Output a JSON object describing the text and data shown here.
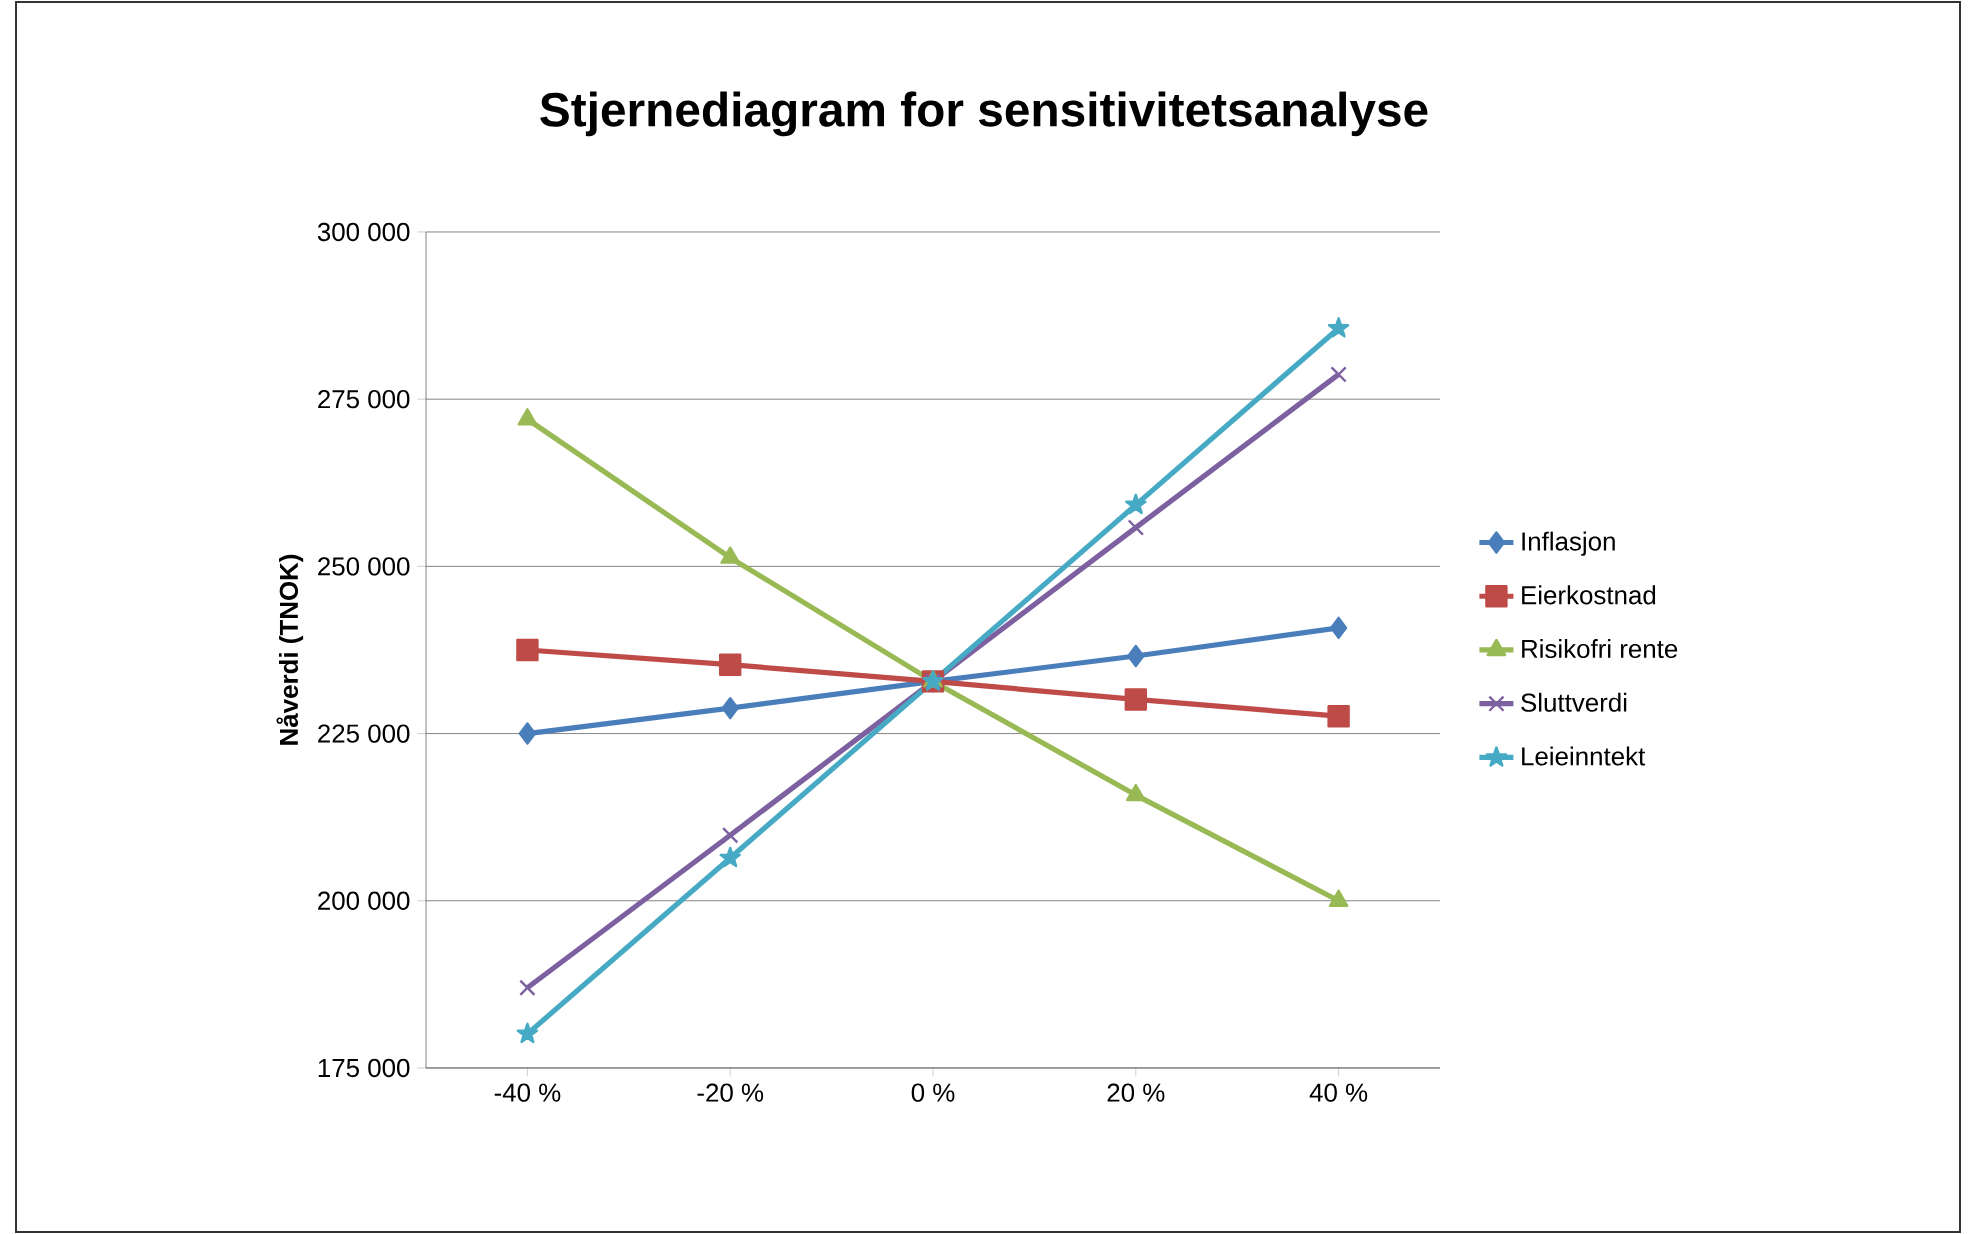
{
  "chart_data": {
    "type": "line",
    "title": "Stjernediagram for sensitivitetsanalyse",
    "ylabel": "Nåverdi (TNOK)",
    "categories": [
      "-40 %",
      "-20 %",
      "0 %",
      "20 %",
      "40 %"
    ],
    "series": [
      {
        "name": "Inflasjon",
        "color": "#4a7ebb",
        "marker": "diamond",
        "values": [
          225000,
          228800,
          232800,
          236600,
          240800
        ]
      },
      {
        "name": "Eierkostnad",
        "color": "#be4b48",
        "marker": "square",
        "values": [
          237500,
          235300,
          232800,
          230100,
          227600
        ]
      },
      {
        "name": "Risikofri rente",
        "color": "#98b954",
        "marker": "triangle",
        "values": [
          272000,
          251300,
          232800,
          215800,
          200000
        ]
      },
      {
        "name": "Sluttverdi",
        "color": "#7d60a0",
        "marker": "cross",
        "values": [
          187000,
          209800,
          232800,
          255800,
          278700
        ]
      },
      {
        "name": "Leieinntekt",
        "color": "#46aac5",
        "marker": "star",
        "values": [
          180100,
          206400,
          232800,
          259200,
          285600
        ]
      }
    ],
    "ylim": [
      175000,
      300000
    ],
    "yticks": [
      {
        "value": 175000,
        "label": "175 000"
      },
      {
        "value": 200000,
        "label": "200 000"
      },
      {
        "value": 225000,
        "label": "225 000"
      },
      {
        "value": 250000,
        "label": "250 000"
      },
      {
        "value": 275000,
        "label": "275 000"
      },
      {
        "value": 300000,
        "label": "300 000"
      }
    ],
    "grid": "y",
    "legend": "right",
    "line_style": "solid"
  }
}
